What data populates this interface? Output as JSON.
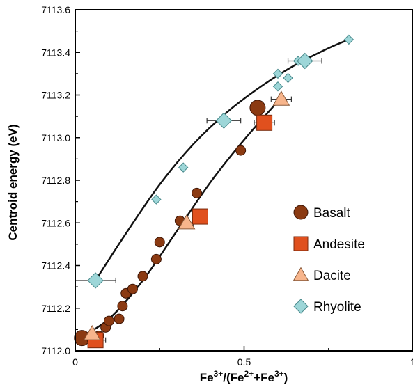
{
  "chart_data": {
    "type": "scatter",
    "xlabel": "Fe3+/(Fe2++Fe3+)",
    "xlabel_parts": {
      "a": "Fe",
      "a_sup": "3+",
      "b": "/(Fe",
      "b_sup": "2+",
      "c": "+Fe",
      "c_sup": "3+",
      "d": ")"
    },
    "ylabel": "Centroid energy (eV)",
    "xlim": [
      0,
      1
    ],
    "ylim": [
      7112.0,
      7113.6
    ],
    "x_ticks": [
      "0",
      "0.5",
      "1"
    ],
    "y_ticks": [
      "7112.0",
      "7112.2",
      "7112.4",
      "7112.6",
      "7112.8",
      "7113.0",
      "7113.2",
      "7113.4",
      "7113.6"
    ],
    "grid": false,
    "legend_position": "right",
    "series": [
      {
        "name": "Basalt",
        "marker": "circle",
        "color": "#8B3A12",
        "points": [
          {
            "x": 0.02,
            "y": 7112.06,
            "size": "large"
          },
          {
            "x": 0.05,
            "y": 7112.05
          },
          {
            "x": 0.07,
            "y": 7112.07
          },
          {
            "x": 0.09,
            "y": 7112.11
          },
          {
            "x": 0.1,
            "y": 7112.14
          },
          {
            "x": 0.13,
            "y": 7112.15
          },
          {
            "x": 0.14,
            "y": 7112.21
          },
          {
            "x": 0.15,
            "y": 7112.27
          },
          {
            "x": 0.17,
            "y": 7112.29
          },
          {
            "x": 0.2,
            "y": 7112.35
          },
          {
            "x": 0.24,
            "y": 7112.43
          },
          {
            "x": 0.25,
            "y": 7112.51
          },
          {
            "x": 0.31,
            "y": 7112.61
          },
          {
            "x": 0.36,
            "y": 7112.74
          },
          {
            "x": 0.49,
            "y": 7112.94
          },
          {
            "x": 0.54,
            "y": 7113.14,
            "size": "large"
          }
        ]
      },
      {
        "name": "Andesite",
        "marker": "square",
        "color": "#E0501E",
        "points": [
          {
            "x": 0.06,
            "y": 7112.05,
            "xerr": 0.03
          },
          {
            "x": 0.37,
            "y": 7112.63,
            "xerr": 0.02
          },
          {
            "x": 0.56,
            "y": 7113.07,
            "xerr": 0.03
          }
        ]
      },
      {
        "name": "Dacite",
        "marker": "triangle",
        "color": "#F7B58C",
        "points": [
          {
            "x": 0.05,
            "y": 7112.08,
            "xerr": 0.03
          },
          {
            "x": 0.33,
            "y": 7112.6,
            "xerr": 0.02
          },
          {
            "x": 0.61,
            "y": 7113.18,
            "xerr": 0.03
          }
        ]
      },
      {
        "name": "Rhyolite",
        "marker": "diamond",
        "color": "#9DD6D8",
        "points": [
          {
            "x": 0.06,
            "y": 7112.33,
            "xerr": 0.06,
            "size": "large"
          },
          {
            "x": 0.24,
            "y": 7112.71
          },
          {
            "x": 0.32,
            "y": 7112.86
          },
          {
            "x": 0.44,
            "y": 7113.08,
            "xerr": 0.05,
            "size": "large"
          },
          {
            "x": 0.6,
            "y": 7113.24
          },
          {
            "x": 0.6,
            "y": 7113.3
          },
          {
            "x": 0.63,
            "y": 7113.28
          },
          {
            "x": 0.66,
            "y": 7113.36
          },
          {
            "x": 0.68,
            "y": 7113.36,
            "xerr": 0.05,
            "size": "large"
          },
          {
            "x": 0.81,
            "y": 7113.46
          }
        ]
      }
    ],
    "fit_curves": [
      {
        "points": [
          [
            0.0,
            7112.05
          ],
          [
            0.1,
            7112.15
          ],
          [
            0.2,
            7112.33
          ],
          [
            0.3,
            7112.56
          ],
          [
            0.4,
            7112.79
          ],
          [
            0.5,
            7112.99
          ],
          [
            0.6,
            7113.17
          ]
        ]
      },
      {
        "points": [
          [
            0.06,
            7112.33
          ],
          [
            0.15,
            7112.55
          ],
          [
            0.25,
            7112.78
          ],
          [
            0.35,
            7112.97
          ],
          [
            0.45,
            7113.12
          ],
          [
            0.55,
            7113.24
          ],
          [
            0.65,
            7113.34
          ],
          [
            0.75,
            7113.42
          ],
          [
            0.81,
            7113.46
          ]
        ]
      }
    ]
  }
}
